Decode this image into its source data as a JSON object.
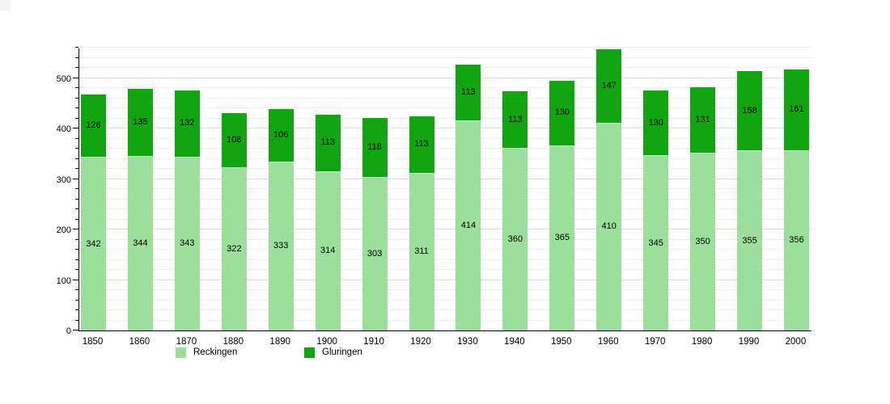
{
  "chart_data": {
    "type": "bar",
    "stacked": true,
    "title": "",
    "xlabel": "",
    "ylabel": "",
    "categories": [
      "1850",
      "1860",
      "1870",
      "1880",
      "1890",
      "1900",
      "1910",
      "1920",
      "1930",
      "1940",
      "1950",
      "1960",
      "1970",
      "1980",
      "1990",
      "2000"
    ],
    "series": [
      {
        "name": "Reckingen",
        "color": "#9cdf9c",
        "values": [
          342,
          344,
          343,
          322,
          333,
          314,
          303,
          311,
          414,
          360,
          365,
          410,
          345,
          350,
          355,
          356
        ]
      },
      {
        "name": "Gluringen",
        "color": "#11a611",
        "values": [
          126,
          135,
          132,
          108,
          106,
          113,
          118,
          113,
          113,
          113,
          130,
          147,
          130,
          131,
          158,
          161
        ]
      }
    ],
    "totals": [
      468,
      479,
      475,
      430,
      439,
      427,
      421,
      424,
      527,
      473,
      495,
      557,
      475,
      481,
      513,
      517
    ],
    "ylim": [
      0,
      560
    ],
    "y_major_ticks": [
      "0",
      "100",
      "200",
      "300",
      "400",
      "500"
    ],
    "y_major_step": 100,
    "y_minor_step": 20,
    "grid": "on",
    "bar_labels_visible": true,
    "legend_position": "bottom"
  },
  "legend": {
    "items": [
      {
        "label": "Reckingen",
        "color": "#9cdf9c"
      },
      {
        "label": "Gluringen",
        "color": "#11a611"
      }
    ]
  },
  "colors": {
    "background": "#ffffff",
    "axis": "#000000",
    "gridline_minor": "#ebebeb",
    "gridline_major": "#dcdcdc",
    "label_text": "#000000"
  }
}
